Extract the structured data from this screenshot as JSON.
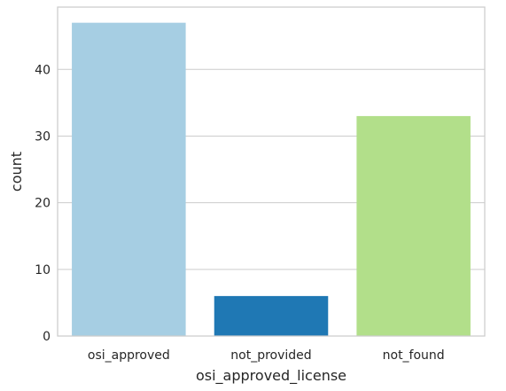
{
  "chart_data": {
    "type": "bar",
    "categories": [
      "osi_approved",
      "not_provided",
      "not_found"
    ],
    "values": [
      47,
      6,
      33
    ],
    "colors": [
      "#a6cee3",
      "#1f78b4",
      "#b2df8a"
    ],
    "xlabel": "osi_approved_license",
    "ylabel": "count",
    "ylim": [
      0,
      49.35
    ],
    "yticks": [
      0,
      10,
      20,
      30,
      40
    ],
    "grid": "y",
    "grid_color": "#cccccc",
    "frame_color": "#cccccc"
  }
}
